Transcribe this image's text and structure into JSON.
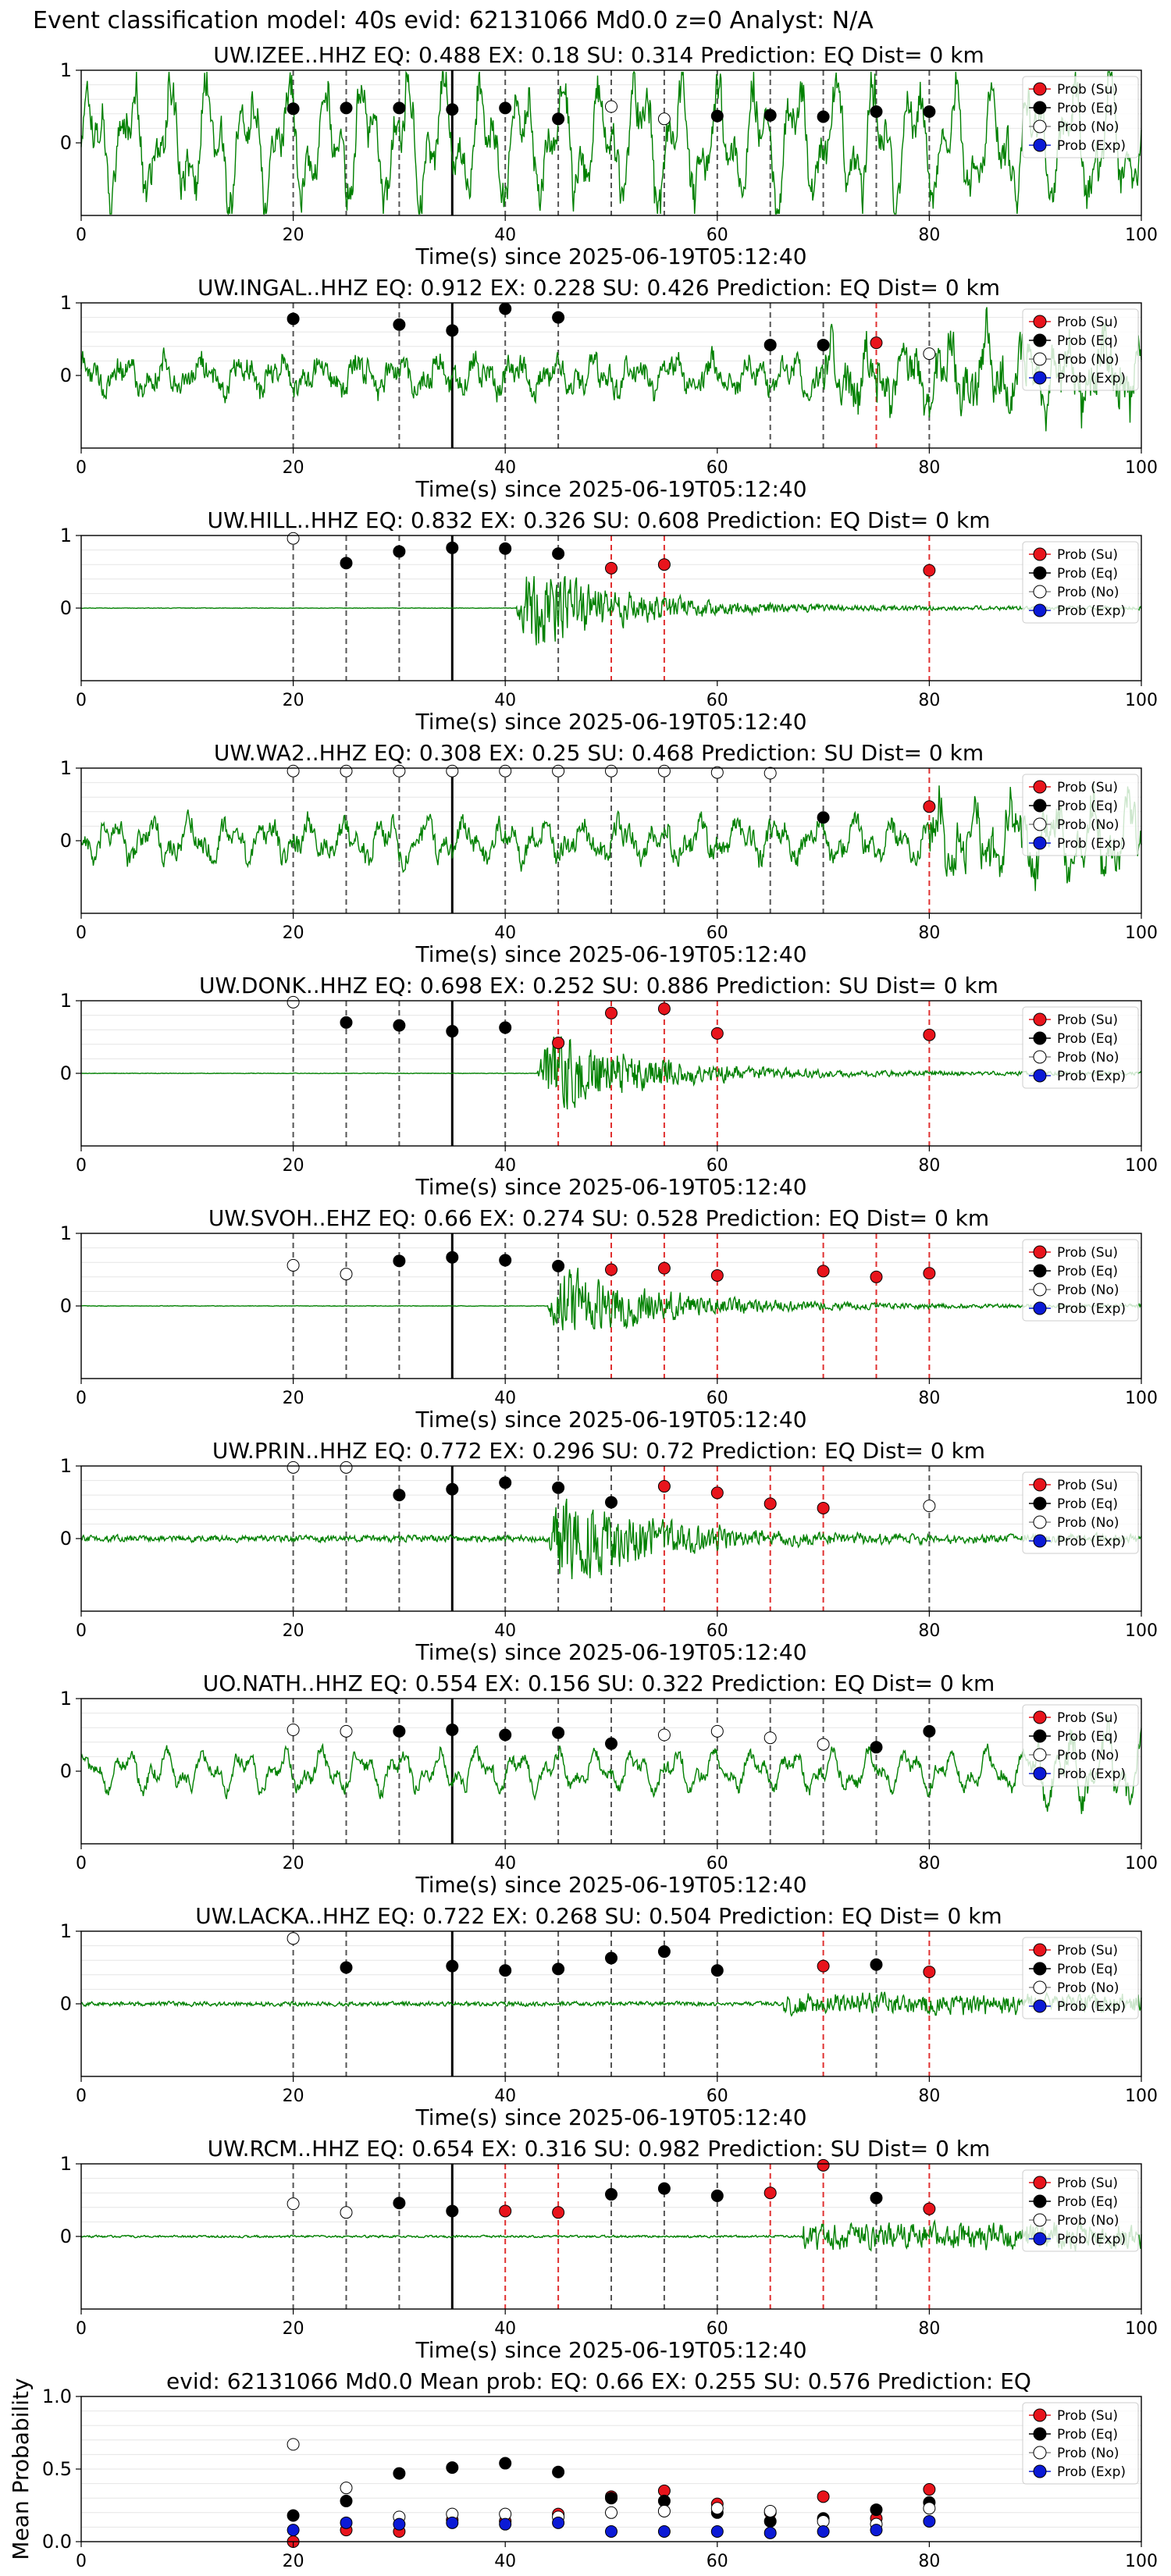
{
  "figure": {
    "suptitle": "Event classification model: 40s evid: 62131066 Md0.0 z=0 Analyst: N/A",
    "xlabel": "Time(s) since 2025-06-19T05:12:40",
    "mean_ylabel": "Mean Probability"
  },
  "legend_labels": [
    "Prob (Su)",
    "Prob (Eq)",
    "Prob (No)",
    "Prob (Exp)"
  ],
  "colors": {
    "trace": "#008000",
    "su": "#e8141c",
    "eq": "#000000",
    "no": "#ffffff",
    "exp": "#0b1ad6",
    "grid": "#e6e6e6",
    "vline_eq": "#555555",
    "vline_su": "#e03030"
  },
  "chart_data": [
    {
      "type": "line",
      "station": "UW.IZEE..HHZ",
      "title": "UW.IZEE..HHZ   EQ: 0.488  EX: 0.18  SU: 0.314   Prediction: EQ    Dist= 0 km",
      "xlim": [
        0,
        100
      ],
      "ylim": [
        -1,
        1
      ],
      "yticks": [
        0,
        1
      ],
      "xticks": [
        0,
        20,
        40,
        60,
        80,
        100
      ],
      "origin_time": 35,
      "window_times": [
        20,
        25,
        30,
        35,
        40,
        45,
        50,
        55,
        60,
        65,
        70,
        75,
        80
      ],
      "window_class": [
        "eq",
        "eq",
        "eq",
        "eq",
        "eq",
        "eq",
        "no",
        "no",
        "eq",
        "eq",
        "eq",
        "eq",
        "eq"
      ],
      "window_prob": [
        0.47,
        0.48,
        0.48,
        0.46,
        0.48,
        0.33,
        0.5,
        0.33,
        0.37,
        0.38,
        0.36,
        0.43,
        0.43
      ],
      "trace": {
        "style": "full",
        "amp": 0.5,
        "onset": 0,
        "noise": 0.35
      }
    },
    {
      "type": "line",
      "station": "UW.INGAL..HHZ",
      "title": "UW.INGAL..HHZ   EQ: 0.912  EX: 0.228  SU: 0.426   Prediction: EQ    Dist= 0 km",
      "xlim": [
        0,
        100
      ],
      "ylim": [
        -1,
        1
      ],
      "yticks": [
        0,
        1
      ],
      "xticks": [
        0,
        20,
        40,
        60,
        80,
        100
      ],
      "origin_time": 35,
      "window_times": [
        20,
        30,
        35,
        40,
        45,
        65,
        70,
        75,
        80
      ],
      "window_class": [
        "eq",
        "eq",
        "eq",
        "eq",
        "eq",
        "eq",
        "eq",
        "su",
        "no"
      ],
      "window_prob": [
        0.78,
        0.7,
        0.62,
        0.92,
        0.8,
        0.42,
        0.42,
        0.45,
        0.3
      ],
      "trace": {
        "style": "full",
        "amp": 0.25,
        "onset": 70,
        "noise": 0.45
      }
    },
    {
      "type": "line",
      "station": "UW.HILL..HHZ",
      "title": "UW.HILL..HHZ   EQ: 0.832  EX: 0.326  SU: 0.608   Prediction: EQ    Dist= 0 km",
      "xlim": [
        0,
        100
      ],
      "ylim": [
        -1,
        1
      ],
      "yticks": [
        0,
        1
      ],
      "xticks": [
        0,
        20,
        40,
        60,
        80,
        100
      ],
      "origin_time": 35,
      "window_times": [
        20,
        25,
        30,
        35,
        40,
        45,
        50,
        55,
        80
      ],
      "window_class": [
        "no",
        "eq",
        "eq",
        "eq",
        "eq",
        "eq",
        "su",
        "su",
        "su"
      ],
      "window_prob": [
        0.96,
        0.62,
        0.78,
        0.83,
        0.82,
        0.75,
        0.55,
        0.6,
        0.52
      ],
      "trace": {
        "style": "event",
        "amp": 0.9,
        "onset": 41,
        "noise": 0.01
      }
    },
    {
      "type": "line",
      "station": "UW.WA2..HHZ",
      "title": "UW.WA2..HHZ   EQ: 0.308  EX: 0.25  SU: 0.468   Prediction: SU    Dist= 0 km",
      "xlim": [
        0,
        100
      ],
      "ylim": [
        -1,
        1
      ],
      "yticks": [
        0,
        1
      ],
      "xticks": [
        0,
        20,
        40,
        60,
        80,
        100
      ],
      "origin_time": 35,
      "window_times": [
        20,
        25,
        30,
        35,
        40,
        45,
        50,
        55,
        60,
        65,
        70,
        80
      ],
      "window_class": [
        "no",
        "no",
        "no",
        "no",
        "no",
        "no",
        "no",
        "no",
        "no",
        "no",
        "eq",
        "su"
      ],
      "window_prob": [
        0.96,
        0.96,
        0.96,
        0.96,
        0.96,
        0.96,
        0.96,
        0.96,
        0.94,
        0.93,
        0.32,
        0.47
      ],
      "trace": {
        "style": "full",
        "amp": 0.3,
        "onset": 80,
        "noise": 0.4
      }
    },
    {
      "type": "line",
      "station": "UW.DONK..HHZ",
      "title": "UW.DONK..HHZ   EQ: 0.698  EX: 0.252  SU: 0.886   Prediction: SU    Dist= 0 km",
      "xlim": [
        0,
        100
      ],
      "ylim": [
        -1,
        1
      ],
      "yticks": [
        0,
        1
      ],
      "xticks": [
        0,
        20,
        40,
        60,
        80,
        100
      ],
      "origin_time": 35,
      "window_times": [
        20,
        25,
        30,
        35,
        40,
        45,
        50,
        55,
        60,
        80
      ],
      "window_class": [
        "no",
        "eq",
        "eq",
        "eq",
        "eq",
        "su",
        "su",
        "su",
        "su",
        "su"
      ],
      "window_prob": [
        0.98,
        0.7,
        0.66,
        0.58,
        0.63,
        0.42,
        0.83,
        0.89,
        0.55,
        0.53
      ],
      "trace": {
        "style": "event",
        "amp": 0.9,
        "onset": 43,
        "noise": 0.01
      }
    },
    {
      "type": "line",
      "station": "UW.SVOH..EHZ",
      "title": "UW.SVOH..EHZ   EQ: 0.66  EX: 0.274  SU: 0.528   Prediction: EQ    Dist= 0 km",
      "xlim": [
        0,
        100
      ],
      "ylim": [
        -1,
        1
      ],
      "yticks": [
        0,
        1
      ],
      "xticks": [
        0,
        20,
        40,
        60,
        80,
        100
      ],
      "origin_time": 35,
      "window_times": [
        20,
        25,
        30,
        35,
        40,
        45,
        50,
        55,
        60,
        70,
        75,
        80
      ],
      "window_class": [
        "no",
        "no",
        "eq",
        "eq",
        "eq",
        "eq",
        "su",
        "su",
        "su",
        "su",
        "su",
        "su"
      ],
      "window_prob": [
        0.56,
        0.44,
        0.62,
        0.67,
        0.63,
        0.55,
        0.5,
        0.52,
        0.42,
        0.48,
        0.4,
        0.45
      ],
      "trace": {
        "style": "event",
        "amp": 0.8,
        "onset": 44,
        "noise": 0.01
      }
    },
    {
      "type": "line",
      "station": "UW.PRIN..HHZ",
      "title": "UW.PRIN..HHZ   EQ: 0.772  EX: 0.296  SU: 0.72   Prediction: EQ    Dist= 0 km",
      "xlim": [
        0,
        100
      ],
      "ylim": [
        -1,
        1
      ],
      "yticks": [
        0,
        1
      ],
      "xticks": [
        0,
        20,
        40,
        60,
        80,
        100
      ],
      "origin_time": 35,
      "window_times": [
        20,
        25,
        30,
        35,
        40,
        45,
        50,
        55,
        60,
        65,
        70,
        80
      ],
      "window_class": [
        "no",
        "no",
        "eq",
        "eq",
        "eq",
        "eq",
        "eq",
        "su",
        "su",
        "su",
        "su",
        "no"
      ],
      "window_prob": [
        0.98,
        0.98,
        0.6,
        0.68,
        0.77,
        0.7,
        0.5,
        0.72,
        0.63,
        0.48,
        0.42,
        0.45
      ],
      "trace": {
        "style": "event",
        "amp": 1.0,
        "onset": 44,
        "noise": 0.12
      }
    },
    {
      "type": "line",
      "station": "UO.NATH..HHZ",
      "title": "UO.NATH..HHZ   EQ: 0.554  EX: 0.156  SU: 0.322   Prediction: EQ    Dist= 0 km",
      "xlim": [
        0,
        100
      ],
      "ylim": [
        -1,
        1
      ],
      "yticks": [
        0,
        1
      ],
      "xticks": [
        0,
        20,
        40,
        60,
        80,
        100
      ],
      "origin_time": 35,
      "window_times": [
        20,
        25,
        30,
        35,
        40,
        45,
        50,
        55,
        60,
        65,
        70,
        75,
        80
      ],
      "window_class": [
        "no",
        "no",
        "eq",
        "eq",
        "eq",
        "eq",
        "eq",
        "no",
        "no",
        "no",
        "no",
        "eq",
        "eq"
      ],
      "window_prob": [
        0.57,
        0.55,
        0.55,
        0.57,
        0.5,
        0.53,
        0.38,
        0.5,
        0.55,
        0.46,
        0.37,
        0.33,
        0.55
      ],
      "trace": {
        "style": "full",
        "amp": 0.3,
        "onset": 90,
        "noise": 0.25
      }
    },
    {
      "type": "line",
      "station": "UW.LACKA..HHZ",
      "title": "UW.LACKA..HHZ   EQ: 0.722  EX: 0.268  SU: 0.504   Prediction: EQ    Dist= 0 km",
      "xlim": [
        0,
        100
      ],
      "ylim": [
        -1,
        1
      ],
      "yticks": [
        0,
        1
      ],
      "xticks": [
        0,
        20,
        40,
        60,
        80,
        100
      ],
      "origin_time": 35,
      "window_times": [
        20,
        25,
        35,
        40,
        45,
        50,
        55,
        60,
        70,
        75,
        80
      ],
      "window_class": [
        "no",
        "eq",
        "eq",
        "eq",
        "eq",
        "eq",
        "eq",
        "eq",
        "su",
        "eq",
        "su"
      ],
      "window_prob": [
        0.9,
        0.5,
        0.52,
        0.46,
        0.48,
        0.63,
        0.72,
        0.46,
        0.52,
        0.54,
        0.44
      ],
      "trace": {
        "style": "quiet",
        "amp": 0.15,
        "onset": 66,
        "noise": 0.08
      }
    },
    {
      "type": "line",
      "station": "UW.RCM..HHZ",
      "title": "UW.RCM..HHZ   EQ: 0.654  EX: 0.316  SU: 0.982   Prediction: SU    Dist= 0 km",
      "xlim": [
        0,
        100
      ],
      "ylim": [
        -1,
        1
      ],
      "yticks": [
        0,
        1
      ],
      "xticks": [
        0,
        20,
        40,
        60,
        80,
        100
      ],
      "origin_time": 35,
      "window_times": [
        20,
        25,
        30,
        35,
        40,
        45,
        50,
        55,
        60,
        65,
        70,
        75,
        80
      ],
      "window_class": [
        "no",
        "no",
        "eq",
        "eq",
        "su",
        "su",
        "eq",
        "eq",
        "eq",
        "su",
        "su",
        "eq",
        "su"
      ],
      "window_prob": [
        0.45,
        0.33,
        0.46,
        0.35,
        0.35,
        0.33,
        0.58,
        0.66,
        0.56,
        0.6,
        0.98,
        0.53,
        0.38
      ],
      "trace": {
        "style": "quiet",
        "amp": 0.2,
        "onset": 68,
        "noise": 0.04
      }
    },
    {
      "type": "scatter",
      "panel": "mean",
      "title": "evid: 62131066  Md0.0   Mean prob:   EQ: 0.66  EX: 0.255  SU: 0.576   Prediction: EQ",
      "xlim": [
        0,
        100
      ],
      "ylim": [
        0,
        1
      ],
      "yticks": [
        0.0,
        0.5,
        1.0
      ],
      "xticks": [
        0,
        20,
        40,
        60,
        80,
        100
      ],
      "x": [
        20,
        25,
        30,
        35,
        40,
        45,
        50,
        55,
        60,
        65,
        70,
        75,
        80
      ],
      "series": [
        {
          "name": "Prob (Su)",
          "key": "su",
          "values": [
            0.0,
            0.08,
            0.07,
            0.15,
            0.14,
            0.19,
            0.31,
            0.35,
            0.26,
            0.2,
            0.31,
            0.16,
            0.36
          ]
        },
        {
          "name": "Prob (Eq)",
          "key": "eq",
          "values": [
            0.18,
            0.28,
            0.47,
            0.51,
            0.54,
            0.48,
            0.3,
            0.28,
            0.2,
            0.14,
            0.16,
            0.22,
            0.27
          ]
        },
        {
          "name": "Prob (No)",
          "key": "no",
          "values": [
            0.67,
            0.37,
            0.17,
            0.19,
            0.19,
            0.17,
            0.2,
            0.21,
            0.23,
            0.21,
            0.14,
            0.12,
            0.23
          ]
        },
        {
          "name": "Prob (Exp)",
          "key": "exp",
          "values": [
            0.08,
            0.13,
            0.12,
            0.13,
            0.12,
            0.13,
            0.07,
            0.07,
            0.07,
            0.06,
            0.07,
            0.08,
            0.14
          ]
        }
      ]
    }
  ]
}
